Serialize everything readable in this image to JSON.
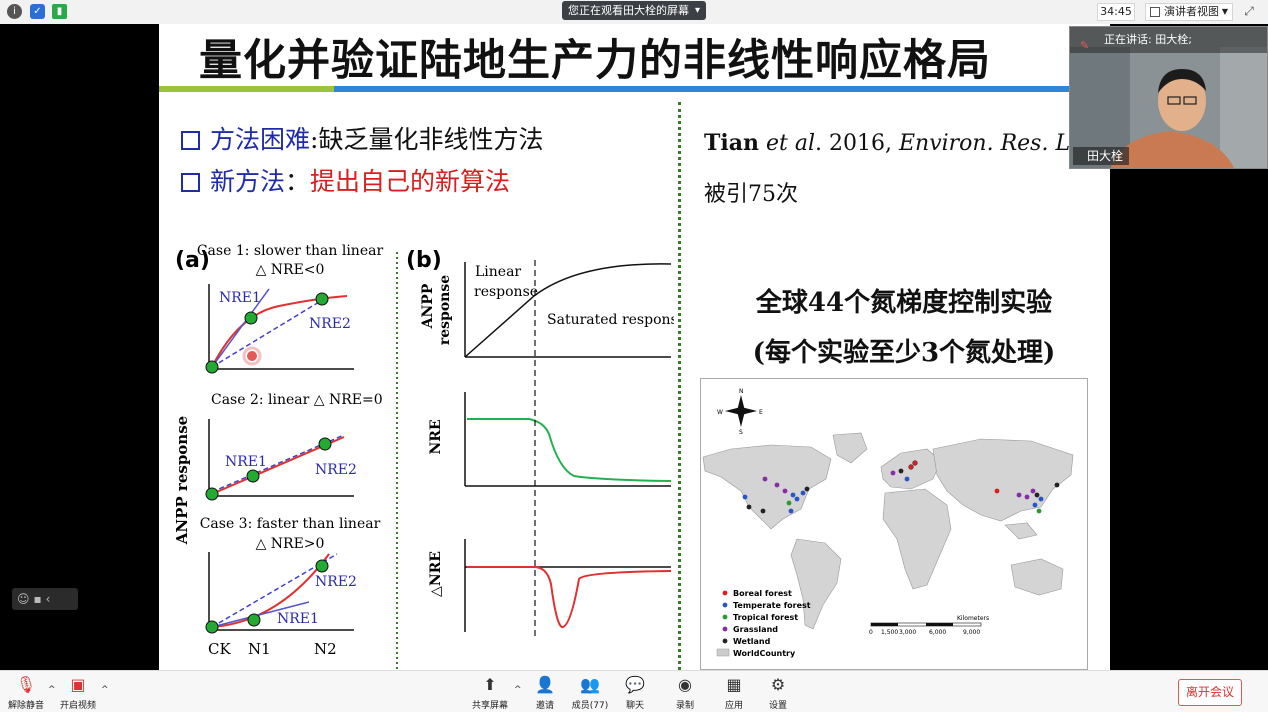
{
  "topbar": {
    "banner": "您正在观看田大栓的屏幕",
    "timer": "34:45",
    "view_select": "演讲者视图"
  },
  "slide": {
    "title": "量化并验证陆地生产力的非线性响应格局",
    "bullets": [
      {
        "head": "方法困难",
        "sep": ":",
        "body": "缺乏量化非线性方法"
      },
      {
        "head": "新方法",
        "sep": "：",
        "body": "提出自己的新算法"
      }
    ],
    "citation": {
      "author": "Tian",
      "etal": "et al",
      "year": ". 2016, ",
      "journal": "Environ. Res. Lett"
    },
    "cited_times": "被引75次",
    "experiments_line1": "全球44个氮梯度控制实验",
    "experiments_line2": "(每个实验至少3个氮处理)",
    "figure": {
      "panel_a": "(a)",
      "panel_b": "(b)",
      "case1": "Case 1: slower than linear",
      "case1_sub": "△ NRE<0",
      "case2": "Case 2: linear  △ NRE=0",
      "case3": "Case 3: faster than linear",
      "case3_sub": "△ NRE>0",
      "nre1": "NRE1",
      "nre2": "NRE2",
      "anpp_response": "ANPP response",
      "x_ck": "CK",
      "x_n1": "N1",
      "x_n2": "N2",
      "b_anpp": "ANPP",
      "b_response": "response",
      "linear": "Linear",
      "linear_response": "response",
      "saturated": "Saturated  response",
      "nre": "NRE",
      "delta_nre": "△NRE"
    },
    "map": {
      "legend": [
        "Boreal forest",
        "Temperate forest",
        "Tropical forest",
        "Grassland",
        "Wetland",
        "WorldCountry"
      ],
      "legend_colors": [
        "#d62020",
        "#2a55c8",
        "#2a9a2a",
        "#8a2aa8",
        "#222222",
        "#cccccc"
      ],
      "scale_ticks": [
        "0",
        "1,500",
        "3,000",
        "6,000",
        "9,000"
      ],
      "scale_unit": "Kilometers"
    }
  },
  "webcam": {
    "speaking_label": "正在讲话: 田大栓;",
    "name": "田大栓"
  },
  "toolbar": {
    "mute": "解除静音",
    "video": "开启视频",
    "share": "共享屏幕",
    "invite": "邀请",
    "members": "成员(77)",
    "chat": "聊天",
    "record": "录制",
    "apps": "应用",
    "settings": "设置",
    "leave": "离开会议"
  }
}
